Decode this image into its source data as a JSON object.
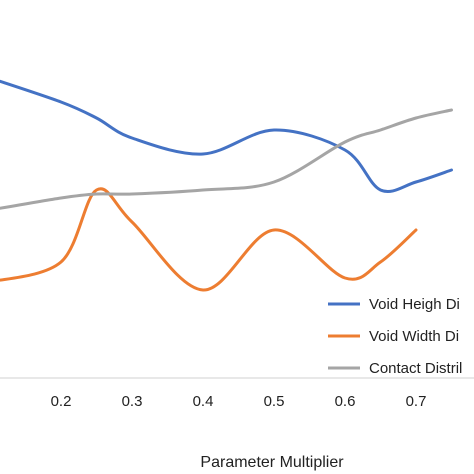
{
  "chart_data": {
    "type": "line",
    "title": "",
    "xlabel": "Parameter Multiplier",
    "ylabel": "",
    "x_ticks": [
      "0.2",
      "0.3",
      "0.4",
      "0.5",
      "0.6",
      "0.7"
    ],
    "x": [
      0.1,
      0.2,
      0.25,
      0.3,
      0.4,
      0.5,
      0.6,
      0.65,
      0.7,
      0.75
    ],
    "series": [
      {
        "name": "Void Heigh Di",
        "color": "#4472C4",
        "values": [
          0.88,
          0.82,
          0.78,
          0.73,
          0.69,
          0.75,
          0.7,
          0.6,
          0.62,
          0.65
        ]
      },
      {
        "name": "Void Width Di",
        "color": "#ED7D31",
        "values": [
          0.37,
          0.42,
          0.6,
          0.52,
          0.35,
          0.5,
          0.38,
          0.42,
          0.5,
          null
        ]
      },
      {
        "name": "Contact Distril",
        "color": "#A5A5A5",
        "values": [
          0.55,
          0.58,
          0.59,
          0.59,
          0.6,
          0.62,
          0.72,
          0.75,
          0.78,
          0.8
        ]
      }
    ],
    "legend_position": "bottom-right",
    "grid": false
  }
}
